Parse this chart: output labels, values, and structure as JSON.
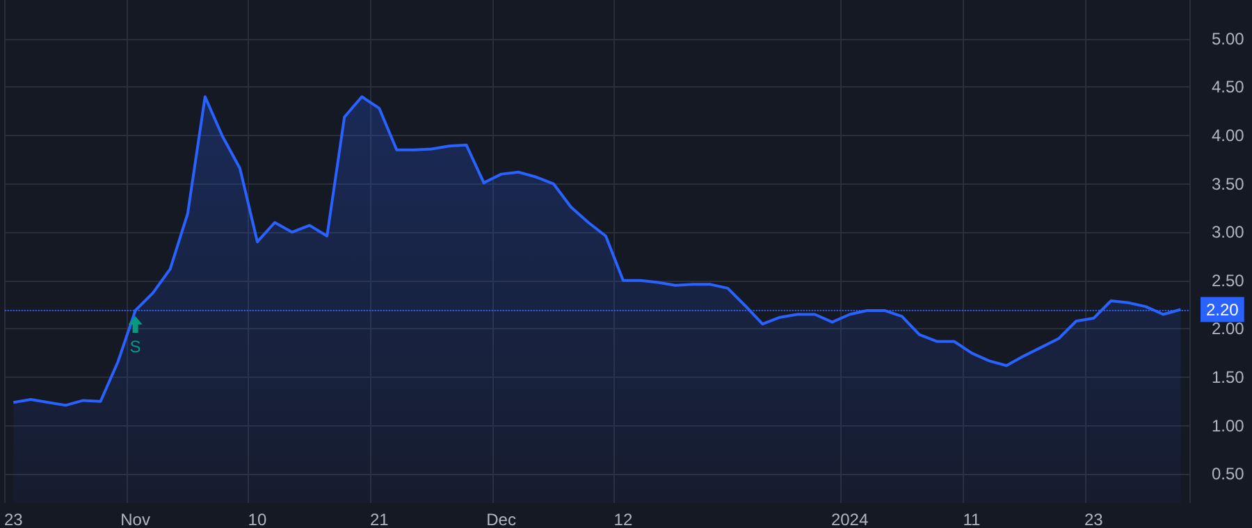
{
  "chart_data": {
    "type": "area",
    "categories": [
      "23",
      null,
      null,
      null,
      null,
      null,
      null,
      "Nov",
      null,
      null,
      null,
      null,
      null,
      null,
      "10",
      null,
      null,
      null,
      null,
      null,
      null,
      "21",
      null,
      null,
      null,
      null,
      null,
      null,
      "Dec",
      null,
      null,
      null,
      null,
      null,
      null,
      "12",
      null,
      null,
      null,
      null,
      null,
      null,
      null,
      null,
      null,
      null,
      null,
      null,
      "2024",
      null,
      null,
      null,
      null,
      null,
      null,
      "11",
      null,
      null,
      null,
      null,
      null,
      null,
      "23",
      null,
      null,
      null,
      null,
      null
    ],
    "series": [
      {
        "color": "#2962ff",
        "values": [
          1.24,
          1.27,
          1.24,
          1.21,
          1.26,
          1.25,
          1.66,
          2.19,
          2.37,
          2.62,
          3.19,
          4.4,
          3.99,
          3.66,
          2.9,
          3.1,
          3.0,
          3.07,
          2.96,
          4.19,
          4.4,
          4.28,
          3.85,
          3.85,
          3.86,
          3.89,
          3.9,
          3.51,
          3.6,
          3.62,
          3.57,
          3.5,
          3.26,
          3.1,
          2.96,
          2.5,
          2.5,
          2.48,
          2.45,
          2.46,
          2.46,
          2.42,
          2.24,
          2.05,
          2.12,
          2.15,
          2.15,
          2.07,
          2.15,
          2.19,
          2.19,
          2.13,
          1.94,
          1.87,
          1.87,
          1.75,
          1.67,
          1.62,
          1.72,
          1.81,
          1.9,
          2.08,
          2.11,
          2.29,
          2.27,
          2.23,
          2.15,
          2.2
        ]
      }
    ],
    "ylim": [
      0.2,
      5.4
    ],
    "yticks": [
      {
        "value": 0.5,
        "label": "0.50"
      },
      {
        "value": 1,
        "label": "1.00"
      },
      {
        "value": 1.5,
        "label": "1.50"
      },
      {
        "value": 2,
        "label": "2.00"
      },
      {
        "value": 2.5,
        "label": "2.50"
      },
      {
        "value": 3,
        "label": "3.00"
      },
      {
        "value": 3.5,
        "label": "3.50"
      },
      {
        "value": 4,
        "label": "4.00"
      },
      {
        "value": 4.5,
        "label": "4.50"
      },
      {
        "value": 5,
        "label": "5.00"
      }
    ],
    "grid": true,
    "marker": "none",
    "ref_lines": [
      {
        "axis": "y",
        "value": 2.2,
        "label": "2.20",
        "color": "#2962ff",
        "line_style": "dotted"
      }
    ],
    "annotations": [
      {
        "text": "S",
        "x": "Nov",
        "y": 2.19
      }
    ]
  }
}
